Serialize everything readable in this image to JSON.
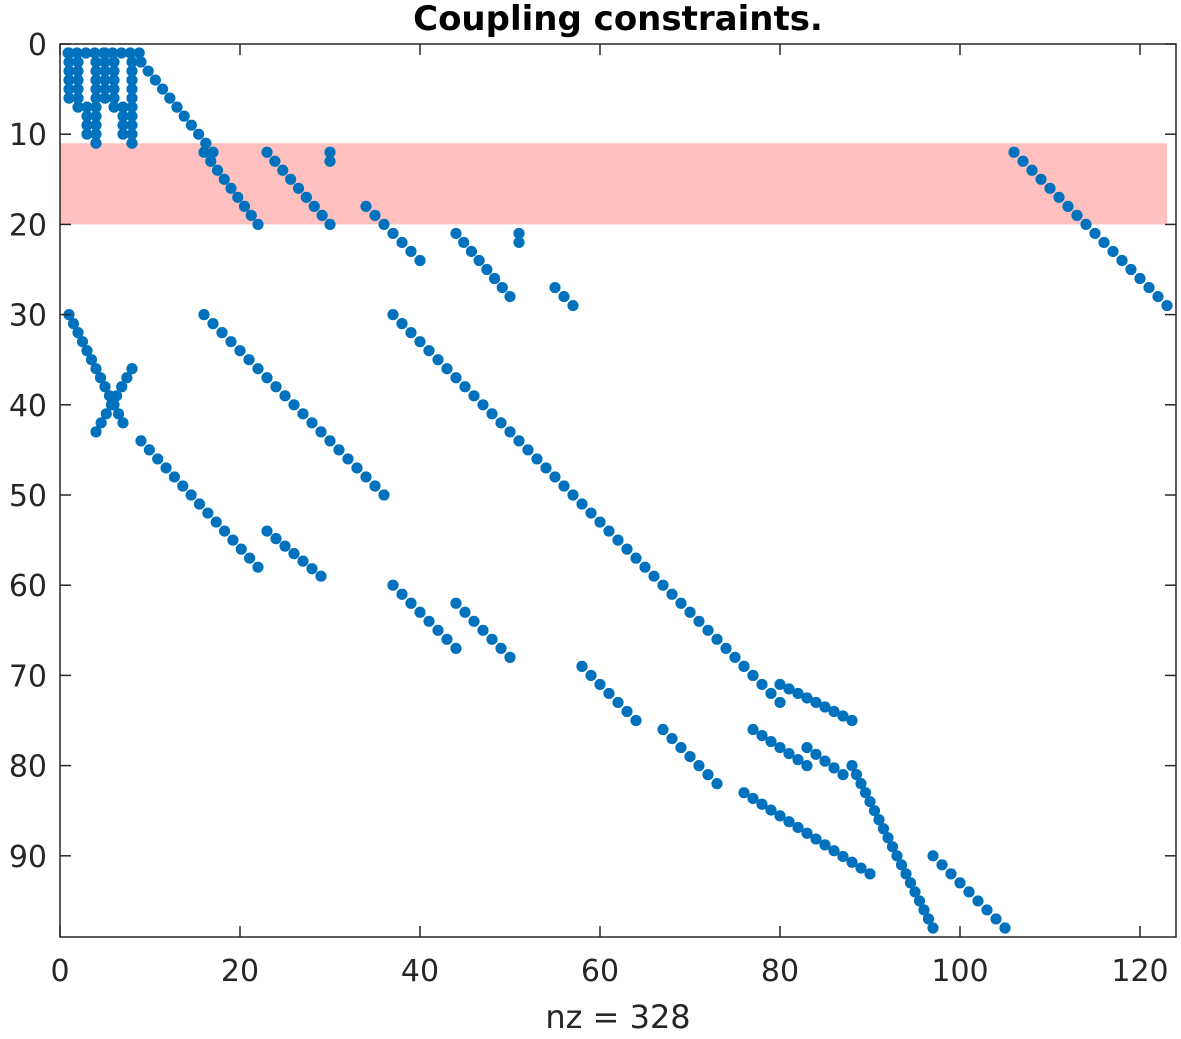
{
  "chart_data": {
    "type": "scatter",
    "subtype": "sparsity-pattern",
    "title": "Coupling constraints.",
    "xlabel": "nz = 328",
    "ylabel": "",
    "xlim": [
      0,
      124
    ],
    "ylim": [
      0,
      99
    ],
    "y_axis_inverted": true,
    "xticks": [
      0,
      20,
      40,
      60,
      80,
      100,
      120
    ],
    "yticks": [
      0,
      10,
      20,
      30,
      40,
      50,
      60,
      70,
      80,
      90
    ],
    "grid": false,
    "legend": "none",
    "marker_color": "#0072BD",
    "highlight": {
      "row_range": [
        11,
        20
      ],
      "x_range": [
        0,
        123
      ],
      "color": "#FF9999"
    },
    "segments": [
      {
        "x": [
          0.9,
          8.8
        ],
        "y": [
          1,
          1
        ]
      },
      {
        "x": [
          1,
          1
        ],
        "y": [
          1,
          6
        ]
      },
      {
        "x": [
          2,
          2
        ],
        "y": [
          2,
          7
        ]
      },
      {
        "x": [
          3,
          3
        ],
        "y": [
          7,
          10
        ]
      },
      {
        "x": [
          4,
          4
        ],
        "y": [
          2,
          11
        ]
      },
      {
        "x": [
          5,
          5
        ],
        "y": [
          1,
          6
        ]
      },
      {
        "x": [
          6,
          6
        ],
        "y": [
          2,
          7
        ]
      },
      {
        "x": [
          7,
          7
        ],
        "y": [
          7,
          10
        ]
      },
      {
        "x": [
          8,
          8
        ],
        "y": [
          2,
          11
        ]
      },
      {
        "x": [
          9,
          17
        ],
        "y": [
          2,
          12
        ]
      },
      {
        "x": [
          16,
          22
        ],
        "y": [
          12,
          20
        ]
      },
      {
        "x": [
          23,
          30
        ],
        "y": [
          12,
          20
        ]
      },
      {
        "x": [
          30,
          30
        ],
        "y": [
          12,
          13
        ]
      },
      {
        "x": [
          34,
          40
        ],
        "y": [
          18,
          24
        ]
      },
      {
        "x": [
          44,
          50
        ],
        "y": [
          21,
          28
        ]
      },
      {
        "x": [
          51,
          51
        ],
        "y": [
          21,
          22
        ]
      },
      {
        "x": [
          55,
          57
        ],
        "y": [
          27,
          29
        ]
      },
      {
        "x": [
          106,
          123
        ],
        "y": [
          12,
          29
        ]
      },
      {
        "x": [
          1,
          7
        ],
        "y": [
          30,
          42
        ]
      },
      {
        "x": [
          16,
          36
        ],
        "y": [
          30,
          50
        ]
      },
      {
        "x": [
          37,
          77
        ],
        "y": [
          30,
          70
        ]
      },
      {
        "x": [
          4,
          8
        ],
        "y": [
          43,
          36
        ]
      },
      {
        "x": [
          9,
          22
        ],
        "y": [
          44,
          58
        ]
      },
      {
        "x": [
          23,
          29
        ],
        "y": [
          54,
          59
        ]
      },
      {
        "x": [
          37,
          44
        ],
        "y": [
          60,
          67
        ]
      },
      {
        "x": [
          44,
          50
        ],
        "y": [
          62,
          68
        ]
      },
      {
        "x": [
          58,
          64
        ],
        "y": [
          69,
          75
        ]
      },
      {
        "x": [
          67,
          73
        ],
        "y": [
          76,
          82
        ]
      },
      {
        "x": [
          76,
          80
        ],
        "y": [
          69,
          73
        ]
      },
      {
        "x": [
          80,
          88
        ],
        "y": [
          71,
          75
        ]
      },
      {
        "x": [
          76,
          90
        ],
        "y": [
          83,
          92
        ]
      },
      {
        "x": [
          77,
          83
        ],
        "y": [
          76,
          80
        ]
      },
      {
        "x": [
          83,
          87
        ],
        "y": [
          78,
          81
        ]
      },
      {
        "x": [
          88,
          97
        ],
        "y": [
          80,
          98
        ]
      },
      {
        "x": [
          97,
          105
        ],
        "y": [
          90,
          98
        ]
      }
    ]
  }
}
